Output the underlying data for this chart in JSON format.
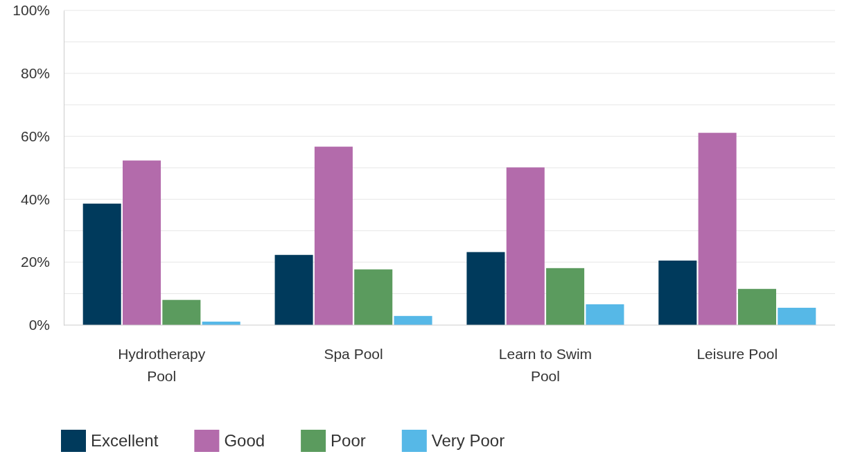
{
  "chart_data": {
    "type": "bar",
    "categories": [
      "Hydrotherapy Pool",
      "Spa Pool",
      "Learn to Swim Pool",
      "Leisure Pool"
    ],
    "series": [
      {
        "name": "Excellent",
        "color": "#003a5c",
        "values": [
          38.6,
          22.3,
          23.2,
          20.5
        ]
      },
      {
        "name": "Good",
        "color": "#b36bab",
        "values": [
          52.3,
          56.7,
          50.1,
          61.1
        ]
      },
      {
        "name": "Poor",
        "color": "#5b9b5e",
        "values": [
          8,
          17.7,
          18.1,
          11.5
        ]
      },
      {
        "name": "Very Poor",
        "color": "#56b8e7",
        "values": [
          1.1,
          2.9,
          6.6,
          5.5
        ]
      }
    ],
    "ylim": [
      0,
      100
    ],
    "yticks": [
      {
        "value": 0,
        "label": "0%"
      },
      {
        "value": 10,
        "label": null
      },
      {
        "value": 20,
        "label": "20%"
      },
      {
        "value": 30,
        "label": null
      },
      {
        "value": 40,
        "label": "40%"
      },
      {
        "value": 50,
        "label": null
      },
      {
        "value": 60,
        "label": "60%"
      },
      {
        "value": 70,
        "label": null
      },
      {
        "value": 80,
        "label": "80%"
      },
      {
        "value": 90,
        "label": null
      },
      {
        "value": 100,
        "label": "100%"
      }
    ],
    "grid": true,
    "legend": "bottom left"
  }
}
